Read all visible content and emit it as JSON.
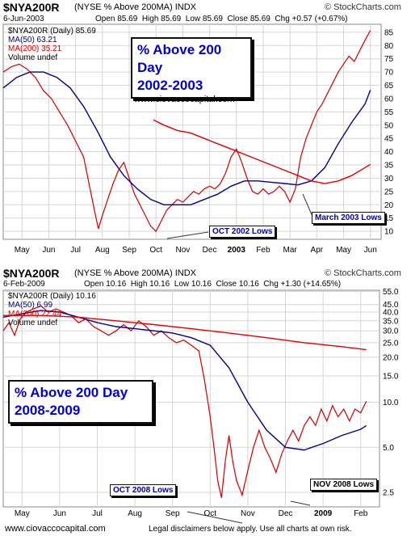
{
  "chart_data": [
    {
      "type": "line",
      "symbol": "$NYA200R",
      "subtitle": "(NYSE % Above 200MA)  INDX",
      "date": "6-Jun-2003",
      "ohlc": {
        "open": "Open 85.69",
        "high": "High 85.69",
        "low": "Low 85.69",
        "close": "Close 85.69",
        "chg": "Chg +0.57 (+0.67%)"
      },
      "brand": "© StockCharts.com",
      "legend": [
        "$NYA200R (Daily) 85.69",
        "MA(50) 63.21",
        "MA(200) 35.21",
        "Volume undef"
      ],
      "callout": [
        "% Above 200 Day",
        "2002-2003"
      ],
      "watermark": "www.ciovaccocapital.com",
      "annotations": [
        "OCT 2002 Lows",
        "March 2003 Lows"
      ],
      "yscale": "linear",
      "ylim": [
        7,
        88
      ],
      "yticks": [
        10,
        15,
        20,
        25,
        30,
        35,
        40,
        45,
        50,
        55,
        60,
        65,
        70,
        75,
        80,
        85
      ],
      "xlabels": [
        {
          "m": "May",
          "t": 0.7
        },
        {
          "m": "Jun",
          "t": 1.7
        },
        {
          "m": "Jul",
          "t": 2.7
        },
        {
          "m": "Aug",
          "t": 3.7
        },
        {
          "m": "Sep",
          "t": 4.7
        },
        {
          "m": "Oct",
          "t": 5.7
        },
        {
          "m": "Nov",
          "t": 6.7
        },
        {
          "m": "Dec",
          "t": 7.7
        },
        {
          "m": "2003",
          "t": 8.7,
          "bold": true
        },
        {
          "m": "Feb",
          "t": 9.7
        },
        {
          "m": "Mar",
          "t": 10.7
        },
        {
          "m": "Apr",
          "t": 11.7
        },
        {
          "m": "May",
          "t": 12.7
        },
        {
          "m": "Jun",
          "t": 13.7
        }
      ],
      "xrange": [
        0,
        14.1
      ],
      "series": [
        {
          "name": "$NYA200R",
          "color": "#cc0000",
          "points": [
            [
              0,
              70
            ],
            [
              0.3,
              72
            ],
            [
              0.6,
              73
            ],
            [
              0.9,
              71
            ],
            [
              1.2,
              68
            ],
            [
              1.5,
              63
            ],
            [
              1.8,
              60
            ],
            [
              2.1,
              55
            ],
            [
              2.4,
              50
            ],
            [
              2.7,
              44
            ],
            [
              3.0,
              38
            ],
            [
              3.2,
              28
            ],
            [
              3.4,
              18
            ],
            [
              3.55,
              11
            ],
            [
              3.7,
              16
            ],
            [
              3.9,
              22
            ],
            [
              4.1,
              28
            ],
            [
              4.3,
              33
            ],
            [
              4.5,
              36
            ],
            [
              4.7,
              30
            ],
            [
              4.9,
              24
            ],
            [
              5.1,
              20
            ],
            [
              5.3,
              16
            ],
            [
              5.5,
              12
            ],
            [
              5.7,
              10
            ],
            [
              5.9,
              14
            ],
            [
              6.1,
              18
            ],
            [
              6.3,
              20
            ],
            [
              6.5,
              22
            ],
            [
              6.7,
              21
            ],
            [
              6.9,
              23
            ],
            [
              7.1,
              25
            ],
            [
              7.3,
              24
            ],
            [
              7.5,
              26
            ],
            [
              7.7,
              27
            ],
            [
              7.9,
              26
            ],
            [
              8.1,
              28
            ],
            [
              8.3,
              32
            ],
            [
              8.5,
              38
            ],
            [
              8.7,
              41
            ],
            [
              8.9,
              36
            ],
            [
              9.1,
              30
            ],
            [
              9.3,
              25
            ],
            [
              9.5,
              24
            ],
            [
              9.7,
              26
            ],
            [
              9.9,
              24
            ],
            [
              10.1,
              25
            ],
            [
              10.3,
              27
            ],
            [
              10.5,
              25
            ],
            [
              10.7,
              21
            ],
            [
              10.9,
              26
            ],
            [
              11.1,
              38
            ],
            [
              11.3,
              45
            ],
            [
              11.5,
              50
            ],
            [
              11.7,
              55
            ],
            [
              11.9,
              58
            ],
            [
              12.1,
              62
            ],
            [
              12.3,
              66
            ],
            [
              12.5,
              70
            ],
            [
              12.7,
              73
            ],
            [
              12.9,
              76
            ],
            [
              13.1,
              74
            ],
            [
              13.3,
              78
            ],
            [
              13.5,
              82
            ],
            [
              13.7,
              85.69
            ]
          ]
        },
        {
          "name": "MA(50)",
          "color": "#00008b",
          "points": [
            [
              0,
              64
            ],
            [
              0.5,
              68
            ],
            [
              1,
              70
            ],
            [
              1.5,
              70
            ],
            [
              2,
              68
            ],
            [
              2.5,
              64
            ],
            [
              3,
              57
            ],
            [
              3.5,
              48
            ],
            [
              4,
              38
            ],
            [
              4.5,
              31
            ],
            [
              5,
              26
            ],
            [
              5.5,
              22
            ],
            [
              6,
              20
            ],
            [
              6.5,
              20
            ],
            [
              7,
              20
            ],
            [
              7.5,
              22
            ],
            [
              8,
              24
            ],
            [
              8.5,
              27
            ],
            [
              9,
              29
            ],
            [
              9.5,
              29
            ],
            [
              10,
              28.5
            ],
            [
              10.5,
              28
            ],
            [
              11,
              27.5
            ],
            [
              11.5,
              29
            ],
            [
              12,
              34
            ],
            [
              12.5,
              43
            ],
            [
              13,
              51
            ],
            [
              13.5,
              58
            ],
            [
              13.7,
              63.21
            ]
          ]
        },
        {
          "name": "MA(200)",
          "color": "#e00000",
          "points": [
            [
              5.6,
              52
            ],
            [
              6,
              50
            ],
            [
              6.5,
              48
            ],
            [
              7,
              47
            ],
            [
              7.5,
              45
            ],
            [
              8,
              43
            ],
            [
              8.5,
              41
            ],
            [
              9,
              39
            ],
            [
              9.5,
              37
            ],
            [
              10,
              35
            ],
            [
              10.5,
              33
            ],
            [
              11,
              31
            ],
            [
              11.5,
              29
            ],
            [
              12,
              28
            ],
            [
              12.5,
              29
            ],
            [
              13,
              31
            ],
            [
              13.5,
              34
            ],
            [
              13.7,
              35.21
            ]
          ]
        }
      ]
    },
    {
      "type": "line",
      "symbol": "$NYA200R",
      "subtitle": "(NYSE % Above 200MA)  INDX",
      "date": "6-Feb-2009",
      "ohlc": {
        "open": "Open 10.16",
        "high": "High 10.16",
        "low": "Low 10.16",
        "close": "Close 10.16",
        "chg": "Chg +1.30 (+14.65%)"
      },
      "brand": "© StockCharts.com",
      "legend": [
        "$NYA200R (Daily) 10.16",
        "MA(50) 6.99",
        "MA(200) 22.44",
        "Volume undef"
      ],
      "callout": [
        "% Above 200 Day",
        "2008-2009"
      ],
      "watermark": "www.ciovaccocapital.com",
      "annotations": [
        "OCT 2008 Lows",
        "NOV 2008 Lows"
      ],
      "footer": "Legal disclaimers below apply. Use all charts at own risk.",
      "yscale": "log",
      "ylim": [
        2.0,
        56
      ],
      "yticks": [
        2.5,
        5.0,
        10.0,
        15.0,
        20.0,
        25.0,
        30.0,
        35.0,
        40.0,
        45.0,
        55.0
      ],
      "xlabels": [
        {
          "m": "May",
          "t": 0.5
        },
        {
          "m": "Jun",
          "t": 1.5
        },
        {
          "m": "Jul",
          "t": 2.5
        },
        {
          "m": "Aug",
          "t": 3.5
        },
        {
          "m": "Sep",
          "t": 4.5
        },
        {
          "m": "Oct",
          "t": 5.5
        },
        {
          "m": "Nov",
          "t": 6.5
        },
        {
          "m": "Dec",
          "t": 7.5
        },
        {
          "m": "2009",
          "t": 8.5,
          "bold": true
        },
        {
          "m": "Feb",
          "t": 9.5
        }
      ],
      "xrange": [
        0,
        10.0
      ],
      "series": [
        {
          "name": "$NYA200R",
          "color": "#cc0000",
          "points": [
            [
              0,
              30
            ],
            [
              0.15,
              34
            ],
            [
              0.3,
              28
            ],
            [
              0.45,
              36
            ],
            [
              0.6,
              40
            ],
            [
              0.8,
              42
            ],
            [
              1.0,
              44
            ],
            [
              1.2,
              40
            ],
            [
              1.4,
              42
            ],
            [
              1.6,
              40
            ],
            [
              1.8,
              38
            ],
            [
              2.0,
              34
            ],
            [
              2.2,
              36
            ],
            [
              2.4,
              32
            ],
            [
              2.6,
              30
            ],
            [
              2.8,
              28
            ],
            [
              3.0,
              30
            ],
            [
              3.2,
              33
            ],
            [
              3.4,
              30
            ],
            [
              3.6,
              35
            ],
            [
              3.8,
              32
            ],
            [
              4.0,
              28
            ],
            [
              4.2,
              30
            ],
            [
              4.4,
              27
            ],
            [
              4.6,
              25
            ],
            [
              4.8,
              26
            ],
            [
              5.0,
              24
            ],
            [
              5.2,
              22
            ],
            [
              5.35,
              14
            ],
            [
              5.5,
              8
            ],
            [
              5.6,
              5
            ],
            [
              5.7,
              3
            ],
            [
              5.8,
              2.3
            ],
            [
              5.9,
              4
            ],
            [
              6.0,
              6
            ],
            [
              6.1,
              4
            ],
            [
              6.2,
              3
            ],
            [
              6.35,
              2.4
            ],
            [
              6.5,
              3.5
            ],
            [
              6.65,
              5
            ],
            [
              6.8,
              6.5
            ],
            [
              6.95,
              5
            ],
            [
              7.1,
              4.2
            ],
            [
              7.25,
              3.4
            ],
            [
              7.4,
              4.5
            ],
            [
              7.55,
              5.5
            ],
            [
              7.7,
              6.5
            ],
            [
              7.85,
              5.5
            ],
            [
              8.0,
              7
            ],
            [
              8.15,
              8
            ],
            [
              8.3,
              7
            ],
            [
              8.45,
              9
            ],
            [
              8.6,
              7.5
            ],
            [
              8.75,
              9.5
            ],
            [
              8.9,
              8
            ],
            [
              9.05,
              9
            ],
            [
              9.2,
              7.5
            ],
            [
              9.35,
              9
            ],
            [
              9.5,
              8.5
            ],
            [
              9.65,
              10.16
            ]
          ]
        },
        {
          "name": "MA(50)",
          "color": "#00008b",
          "points": [
            [
              0,
              37
            ],
            [
              0.5,
              39
            ],
            [
              1.0,
              41
            ],
            [
              1.5,
              40
            ],
            [
              2.0,
              37
            ],
            [
              2.5,
              34
            ],
            [
              3.0,
              32
            ],
            [
              3.5,
              31
            ],
            [
              4.0,
              30
            ],
            [
              4.5,
              29
            ],
            [
              5.0,
              27
            ],
            [
              5.5,
              24
            ],
            [
              6.0,
              17
            ],
            [
              6.5,
              10
            ],
            [
              7.0,
              6.5
            ],
            [
              7.5,
              5.0
            ],
            [
              8.0,
              4.8
            ],
            [
              8.5,
              5.3
            ],
            [
              9.0,
              6.0
            ],
            [
              9.5,
              6.6
            ],
            [
              9.65,
              6.99
            ]
          ]
        },
        {
          "name": "MA(200)",
          "color": "#e00000",
          "points": [
            [
              0,
              38
            ],
            [
              1,
              38
            ],
            [
              2,
              37
            ],
            [
              3,
              35
            ],
            [
              4,
              33
            ],
            [
              5,
              31
            ],
            [
              6,
              29
            ],
            [
              7,
              27
            ],
            [
              8,
              25
            ],
            [
              9,
              23.5
            ],
            [
              9.65,
              22.44
            ]
          ]
        }
      ]
    }
  ]
}
